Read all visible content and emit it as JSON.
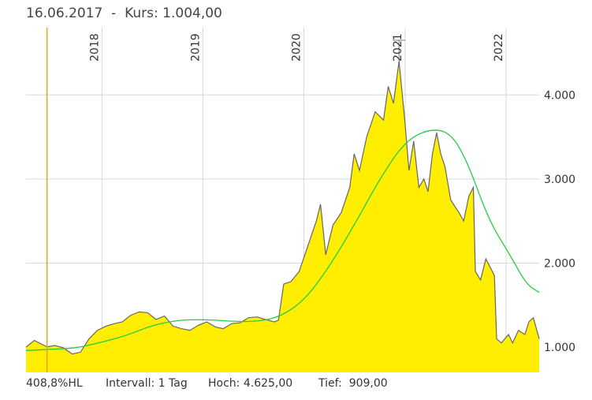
{
  "header": {
    "date": "16.06.2017",
    "separator": "-",
    "price_label": "Kurs:",
    "price_value": "1.004,00"
  },
  "footer": {
    "range_text": "408,8%HL",
    "interval_label": "Intervall:",
    "interval_value": "1 Tag",
    "high_label": "Hoch:",
    "high_value": "4.625,00",
    "low_label": "Tief:",
    "low_value": "909,00"
  },
  "colors": {
    "area_fill": "#ffee00",
    "price_line": "#666666",
    "moving_average": "#22cc44",
    "cursor": "#f0a020",
    "grid": "#d8d8d8"
  },
  "chart_data": {
    "type": "area",
    "x_start": "2017-04-01",
    "x_end": "2022-05-01",
    "ylim": [
      700,
      4800
    ],
    "y_ticks": [
      1000,
      2000,
      3000,
      4000
    ],
    "y_tick_labels": [
      "1.000",
      "2.000",
      "3.000",
      "4.000"
    ],
    "x_ticks": [
      {
        "date": "2018-01-01",
        "label": "2018"
      },
      {
        "date": "2019-01-01",
        "label": "2019"
      },
      {
        "date": "2020-01-01",
        "label": "2020"
      },
      {
        "date": "2021-01-01",
        "label": "2021"
      },
      {
        "date": "2022-01-01",
        "label": "2022"
      }
    ],
    "grid": true,
    "cursor": {
      "date": "2017-06-16",
      "value": 1004
    },
    "series": [
      {
        "role": "price",
        "points": [
          [
            "2017-04-01",
            1000
          ],
          [
            "2017-05-01",
            1080
          ],
          [
            "2017-06-16",
            1004
          ],
          [
            "2017-07-15",
            1020
          ],
          [
            "2017-08-15",
            990
          ],
          [
            "2017-09-15",
            920
          ],
          [
            "2017-10-15",
            940
          ],
          [
            "2017-11-15",
            1100
          ],
          [
            "2017-12-15",
            1200
          ],
          [
            "2018-01-15",
            1250
          ],
          [
            "2018-02-15",
            1280
          ],
          [
            "2018-03-15",
            1300
          ],
          [
            "2018-04-15",
            1380
          ],
          [
            "2018-05-15",
            1420
          ],
          [
            "2018-06-15",
            1410
          ],
          [
            "2018-07-15",
            1330
          ],
          [
            "2018-08-15",
            1370
          ],
          [
            "2018-09-15",
            1250
          ],
          [
            "2018-10-15",
            1220
          ],
          [
            "2018-11-15",
            1200
          ],
          [
            "2018-12-15",
            1260
          ],
          [
            "2019-01-15",
            1300
          ],
          [
            "2019-02-15",
            1240
          ],
          [
            "2019-03-15",
            1220
          ],
          [
            "2019-04-15",
            1280
          ],
          [
            "2019-05-15",
            1290
          ],
          [
            "2019-06-15",
            1350
          ],
          [
            "2019-07-15",
            1360
          ],
          [
            "2019-08-15",
            1330
          ],
          [
            "2019-09-15",
            1300
          ],
          [
            "2019-10-01",
            1320
          ],
          [
            "2019-10-20",
            1750
          ],
          [
            "2019-11-15",
            1780
          ],
          [
            "2019-12-15",
            1900
          ],
          [
            "2020-01-15",
            2200
          ],
          [
            "2020-02-15",
            2500
          ],
          [
            "2020-03-01",
            2700
          ],
          [
            "2020-03-20",
            2100
          ],
          [
            "2020-04-15",
            2450
          ],
          [
            "2020-05-15",
            2600
          ],
          [
            "2020-06-15",
            2900
          ],
          [
            "2020-07-01",
            3300
          ],
          [
            "2020-07-20",
            3100
          ],
          [
            "2020-08-15",
            3500
          ],
          [
            "2020-09-15",
            3800
          ],
          [
            "2020-10-15",
            3700
          ],
          [
            "2020-11-01",
            4100
          ],
          [
            "2020-11-20",
            3900
          ],
          [
            "2020-12-10",
            4400
          ],
          [
            "2020-12-31",
            3700
          ],
          [
            "2021-01-15",
            3100
          ],
          [
            "2021-02-01",
            3450
          ],
          [
            "2021-02-20",
            2900
          ],
          [
            "2021-03-10",
            3000
          ],
          [
            "2021-03-25",
            2850
          ],
          [
            "2021-04-10",
            3300
          ],
          [
            "2021-04-25",
            3550
          ],
          [
            "2021-05-10",
            3300
          ],
          [
            "2021-05-25",
            3150
          ],
          [
            "2021-06-15",
            2750
          ],
          [
            "2021-07-15",
            2600
          ],
          [
            "2021-08-01",
            2500
          ],
          [
            "2021-08-20",
            2800
          ],
          [
            "2021-09-05",
            2900
          ],
          [
            "2021-09-12",
            1900
          ],
          [
            "2021-10-01",
            1800
          ],
          [
            "2021-10-20",
            2050
          ],
          [
            "2021-11-05",
            1950
          ],
          [
            "2021-11-20",
            1850
          ],
          [
            "2021-11-28",
            1100
          ],
          [
            "2021-12-15",
            1050
          ],
          [
            "2022-01-10",
            1150
          ],
          [
            "2022-01-25",
            1050
          ],
          [
            "2022-02-15",
            1200
          ],
          [
            "2022-03-10",
            1150
          ],
          [
            "2022-03-25",
            1300
          ],
          [
            "2022-04-10",
            1350
          ],
          [
            "2022-05-01",
            1100
          ]
        ]
      },
      {
        "role": "moving_average",
        "points": [
          [
            "2017-04-01",
            960
          ],
          [
            "2017-08-01",
            980
          ],
          [
            "2017-10-01",
            990
          ],
          [
            "2018-01-01",
            1060
          ],
          [
            "2018-04-01",
            1140
          ],
          [
            "2018-07-01",
            1260
          ],
          [
            "2018-10-01",
            1320
          ],
          [
            "2019-01-01",
            1330
          ],
          [
            "2019-04-01",
            1310
          ],
          [
            "2019-07-01",
            1300
          ],
          [
            "2019-10-01",
            1350
          ],
          [
            "2020-01-01",
            1550
          ],
          [
            "2020-04-01",
            1950
          ],
          [
            "2020-07-01",
            2450
          ],
          [
            "2020-10-01",
            3000
          ],
          [
            "2021-01-01",
            3450
          ],
          [
            "2021-04-01",
            3600
          ],
          [
            "2021-06-15",
            3550
          ],
          [
            "2021-08-15",
            3200
          ],
          [
            "2021-11-01",
            2500
          ],
          [
            "2022-01-15",
            2100
          ],
          [
            "2022-03-15",
            1750
          ],
          [
            "2022-05-01",
            1650
          ]
        ]
      }
    ]
  }
}
